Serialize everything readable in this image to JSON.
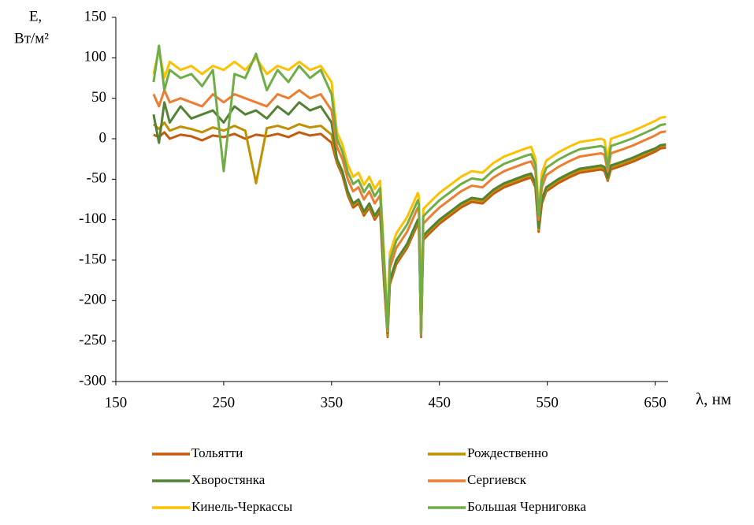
{
  "chart_data": {
    "type": "line",
    "y_label": [
      "E,",
      "Вт/м²"
    ],
    "x_label": "λ, нм",
    "x": [
      185,
      190,
      195,
      200,
      210,
      220,
      230,
      240,
      250,
      260,
      270,
      280,
      290,
      300,
      310,
      320,
      330,
      340,
      350,
      355,
      360,
      365,
      370,
      375,
      380,
      385,
      390,
      395,
      397,
      399,
      402,
      404,
      410,
      420,
      430,
      431,
      433,
      435,
      440,
      450,
      460,
      470,
      480,
      490,
      500,
      510,
      520,
      530,
      535,
      539,
      542,
      545,
      549,
      560,
      570,
      580,
      590,
      600,
      603,
      606,
      609,
      620,
      630,
      640,
      650,
      655,
      660
    ],
    "xlim": [
      150,
      662
    ],
    "xticks": [
      150,
      250,
      350,
      450,
      550,
      650
    ],
    "ylim": [
      -300,
      150
    ],
    "yticks": [
      -300,
      -250,
      -200,
      -150,
      -100,
      -50,
      0,
      50,
      100,
      150
    ],
    "series": [
      {
        "name": "Тольятти",
        "color": "#c55a11",
        "values": [
          5,
          2,
          8,
          0,
          5,
          3,
          -2,
          4,
          2,
          6,
          0,
          5,
          3,
          6,
          2,
          8,
          4,
          6,
          -5,
          -30,
          -45,
          -70,
          -85,
          -80,
          -95,
          -85,
          -100,
          -90,
          -140,
          -185,
          -245,
          -180,
          -155,
          -135,
          -105,
          -110,
          -245,
          -125,
          -118,
          -105,
          -95,
          -85,
          -78,
          -80,
          -68,
          -60,
          -55,
          -50,
          -48,
          -60,
          -115,
          -80,
          -65,
          -55,
          -48,
          -42,
          -40,
          -38,
          -40,
          -52,
          -38,
          -33,
          -28,
          -22,
          -16,
          -12,
          -11
        ]
      },
      {
        "name": "Рождественно",
        "color": "#bf9000",
        "values": [
          18,
          12,
          20,
          10,
          15,
          12,
          8,
          14,
          10,
          16,
          10,
          -55,
          13,
          16,
          12,
          18,
          14,
          16,
          5,
          -27,
          -42,
          -67,
          -82,
          -77,
          -92,
          -82,
          -97,
          -87,
          -137,
          -182,
          -243,
          -177,
          -152,
          -132,
          -102,
          -107,
          -243,
          -122,
          -115,
          -102,
          -92,
          -82,
          -75,
          -77,
          -65,
          -57,
          -52,
          -47,
          -45,
          -57,
          -112,
          -77,
          -62,
          -52,
          -45,
          -39,
          -37,
          -35,
          -37,
          -50,
          -35,
          -30,
          -25,
          -19,
          -13,
          -9,
          -8
        ]
      },
      {
        "name": "Хворостянка",
        "color": "#548235",
        "values": [
          30,
          -5,
          45,
          20,
          40,
          25,
          30,
          35,
          20,
          40,
          30,
          35,
          25,
          40,
          30,
          45,
          35,
          40,
          20,
          -25,
          -40,
          -65,
          -80,
          -75,
          -90,
          -80,
          -95,
          -85,
          -135,
          -180,
          -240,
          -175,
          -150,
          -130,
          -100,
          -105,
          -240,
          -120,
          -113,
          -100,
          -90,
          -80,
          -73,
          -75,
          -63,
          -55,
          -50,
          -45,
          -43,
          -55,
          -110,
          -75,
          -60,
          -50,
          -43,
          -37,
          -35,
          -33,
          -35,
          -48,
          -33,
          -28,
          -23,
          -17,
          -12,
          -8,
          -7
        ]
      },
      {
        "name": "Сергиевск",
        "color": "#ed7d31",
        "values": [
          55,
          40,
          60,
          45,
          50,
          45,
          40,
          55,
          45,
          55,
          50,
          45,
          40,
          55,
          50,
          60,
          50,
          55,
          35,
          -10,
          -25,
          -50,
          -65,
          -60,
          -75,
          -65,
          -80,
          -70,
          -120,
          -170,
          -238,
          -160,
          -135,
          -115,
          -85,
          -90,
          -238,
          -105,
          -98,
          -85,
          -75,
          -65,
          -58,
          -60,
          -48,
          -40,
          -35,
          -30,
          -28,
          -40,
          -100,
          -60,
          -45,
          -35,
          -28,
          -22,
          -20,
          -18,
          -20,
          -40,
          -18,
          -13,
          -8,
          -2,
          4,
          8,
          9
        ]
      },
      {
        "name": "Кинель-Черкассы",
        "color": "#ffc000",
        "values": [
          80,
          110,
          75,
          95,
          85,
          90,
          80,
          90,
          85,
          95,
          85,
          100,
          80,
          90,
          85,
          95,
          85,
          90,
          70,
          8,
          -7,
          -32,
          -47,
          -42,
          -57,
          -47,
          -62,
          -52,
          -102,
          -150,
          -230,
          -142,
          -117,
          -97,
          -67,
          -72,
          -235,
          -87,
          -80,
          -67,
          -57,
          -47,
          -40,
          -42,
          -30,
          -22,
          -17,
          -12,
          -10,
          -25,
          -85,
          -42,
          -27,
          -17,
          -10,
          -4,
          -2,
          0,
          -2,
          -25,
          0,
          5,
          10,
          16,
          22,
          26,
          27
        ]
      },
      {
        "name": "Большая Черниговка",
        "color": "#70ad47",
        "values": [
          70,
          115,
          60,
          85,
          75,
          80,
          65,
          85,
          -40,
          80,
          75,
          105,
          60,
          85,
          70,
          90,
          75,
          85,
          55,
          0,
          -16,
          -41,
          -56,
          -51,
          -66,
          -56,
          -71,
          -61,
          -111,
          -160,
          -235,
          -151,
          -126,
          -106,
          -76,
          -81,
          -240,
          -96,
          -89,
          -76,
          -66,
          -56,
          -49,
          -51,
          -39,
          -31,
          -26,
          -21,
          -19,
          -32,
          -95,
          -51,
          -36,
          -26,
          -19,
          -13,
          -11,
          -9,
          -11,
          -35,
          -9,
          -4,
          1,
          7,
          13,
          17,
          18
        ]
      }
    ]
  }
}
